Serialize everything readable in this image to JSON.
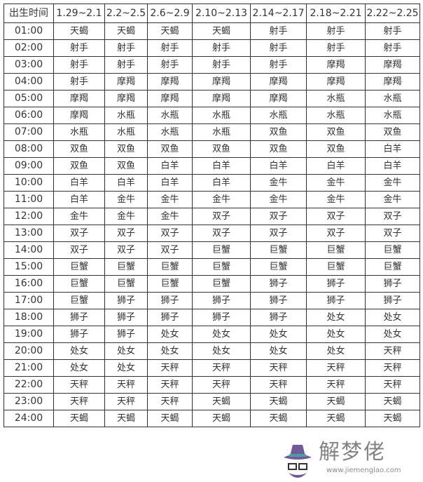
{
  "headers": [
    "出生时间",
    "1.29~2.1",
    "2.2~2.5",
    "2.6~2.9",
    "2.10~2.13",
    "2.14~2.17",
    "2.18~2.21",
    "2.22~2.25"
  ],
  "rows": [
    [
      "01:00",
      "天蝎",
      "天蝎",
      "天蝎",
      "天蝎",
      "射手",
      "射手",
      "射手"
    ],
    [
      "02:00",
      "射手",
      "射手",
      "射手",
      "射手",
      "射手",
      "射手",
      "射手"
    ],
    [
      "03:00",
      "射手",
      "射手",
      "射手",
      "射手",
      "射手",
      "摩羯",
      "摩羯"
    ],
    [
      "04:00",
      "射手",
      "摩羯",
      "摩羯",
      "摩羯",
      "摩羯",
      "摩羯",
      "摩羯"
    ],
    [
      "05:00",
      "摩羯",
      "摩羯",
      "摩羯",
      "摩羯",
      "摩羯",
      "水瓶",
      "水瓶"
    ],
    [
      "06:00",
      "摩羯",
      "水瓶",
      "水瓶",
      "水瓶",
      "水瓶",
      "水瓶",
      "水瓶"
    ],
    [
      "07:00",
      "水瓶",
      "水瓶",
      "水瓶",
      "水瓶",
      "双鱼",
      "双鱼",
      "双鱼"
    ],
    [
      "08:00",
      "双鱼",
      "双鱼",
      "双鱼",
      "双鱼",
      "双鱼",
      "双鱼",
      "白羊"
    ],
    [
      "09:00",
      "双鱼",
      "双鱼",
      "白羊",
      "白羊",
      "白羊",
      "白羊",
      "白羊"
    ],
    [
      "10:00",
      "白羊",
      "白羊",
      "白羊",
      "白羊",
      "金牛",
      "金牛",
      "金牛"
    ],
    [
      "11:00",
      "白羊",
      "金牛",
      "金牛",
      "金牛",
      "金牛",
      "金牛",
      "金牛"
    ],
    [
      "12:00",
      "金牛",
      "金牛",
      "金牛",
      "双子",
      "双子",
      "双子",
      "双子"
    ],
    [
      "13:00",
      "双子",
      "双子",
      "双子",
      "双子",
      "双子",
      "双子",
      "双子"
    ],
    [
      "14:00",
      "双子",
      "双子",
      "双子",
      "巨蟹",
      "巨蟹",
      "巨蟹",
      "巨蟹"
    ],
    [
      "15:00",
      "巨蟹",
      "巨蟹",
      "巨蟹",
      "巨蟹",
      "巨蟹",
      "巨蟹",
      "巨蟹"
    ],
    [
      "16:00",
      "巨蟹",
      "巨蟹",
      "巨蟹",
      "巨蟹",
      "狮子",
      "狮子",
      "狮子"
    ],
    [
      "17:00",
      "巨蟹",
      "狮子",
      "狮子",
      "狮子",
      "狮子",
      "狮子",
      "狮子"
    ],
    [
      "18:00",
      "狮子",
      "狮子",
      "狮子",
      "狮子",
      "狮子",
      "处女",
      "处女"
    ],
    [
      "19:00",
      "狮子",
      "狮子",
      "处女",
      "处女",
      "处女",
      "处女",
      "处女"
    ],
    [
      "20:00",
      "处女",
      "处女",
      "处女",
      "处女",
      "处女",
      "处女",
      "天秤"
    ],
    [
      "21:00",
      "处女",
      "处女",
      "天秤",
      "天秤",
      "天秤",
      "天秤",
      "天秤"
    ],
    [
      "22:00",
      "天秤",
      "天秤",
      "天秤",
      "天秤",
      "天秤",
      "天秤",
      "天秤"
    ],
    [
      "23:00",
      "天秤",
      "天秤",
      "天秤",
      "天蝎",
      "天蝎",
      "天蝎",
      "天蝎"
    ],
    [
      "24:00",
      "天蝎",
      "天蝎",
      "天蝎",
      "天蝎",
      "天蝎",
      "天蝎",
      "天蝎"
    ]
  ],
  "watermark": {
    "text": "解梦佬",
    "url": "www.jiemenglao.com"
  }
}
